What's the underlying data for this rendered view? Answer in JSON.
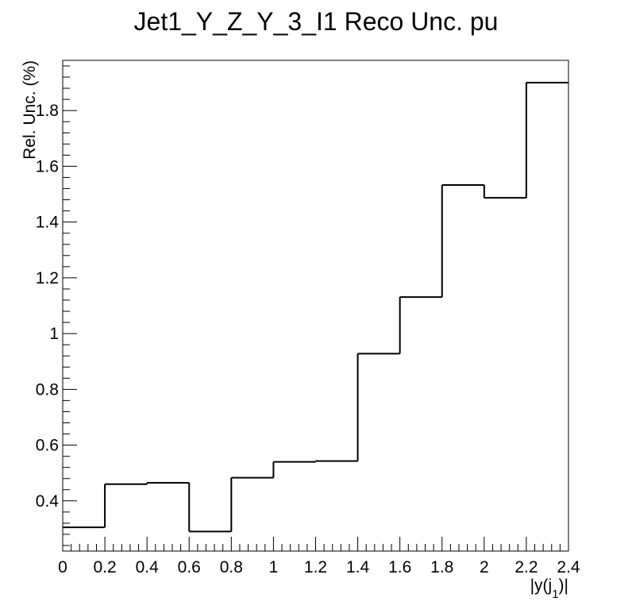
{
  "chart_data": {
    "type": "histogram",
    "title": "Jet1_Y_Z_Y_3_I1 Reco Unc. pu",
    "xlabel": "|y(j_1)|",
    "xlabel_main": "|y(j",
    "xlabel_sub": "1",
    "xlabel_tail": ")|",
    "ylabel": "Rel. Unc. (%)",
    "bin_edges": [
      0,
      0.2,
      0.4,
      0.6,
      0.8,
      1.0,
      1.2,
      1.4,
      1.6,
      1.8,
      2.0,
      2.2,
      2.4
    ],
    "values": [
      0.305,
      0.46,
      0.465,
      0.29,
      0.483,
      0.54,
      0.543,
      0.928,
      1.131,
      1.533,
      1.487,
      1.9
    ],
    "xlim": [
      0,
      2.4
    ],
    "ylim": [
      0.22,
      1.98
    ],
    "x_ticks": [
      0,
      0.2,
      0.4,
      0.6,
      0.8,
      1,
      1.2,
      1.4,
      1.6,
      1.8,
      2,
      2.2,
      2.4
    ],
    "x_tick_labels": [
      "0",
      "0.2",
      "0.4",
      "0.6",
      "0.8",
      "1",
      "1.2",
      "1.4",
      "1.6",
      "1.8",
      "2",
      "2.2",
      "2.4"
    ],
    "y_ticks": [
      0.4,
      0.6,
      0.8,
      1.0,
      1.2,
      1.4,
      1.6,
      1.8
    ],
    "y_tick_labels": [
      "0.4",
      "0.6",
      "0.8",
      "1",
      "1.2",
      "1.4",
      "1.6",
      "1.8"
    ],
    "grid": false,
    "line_color": "#000000"
  }
}
